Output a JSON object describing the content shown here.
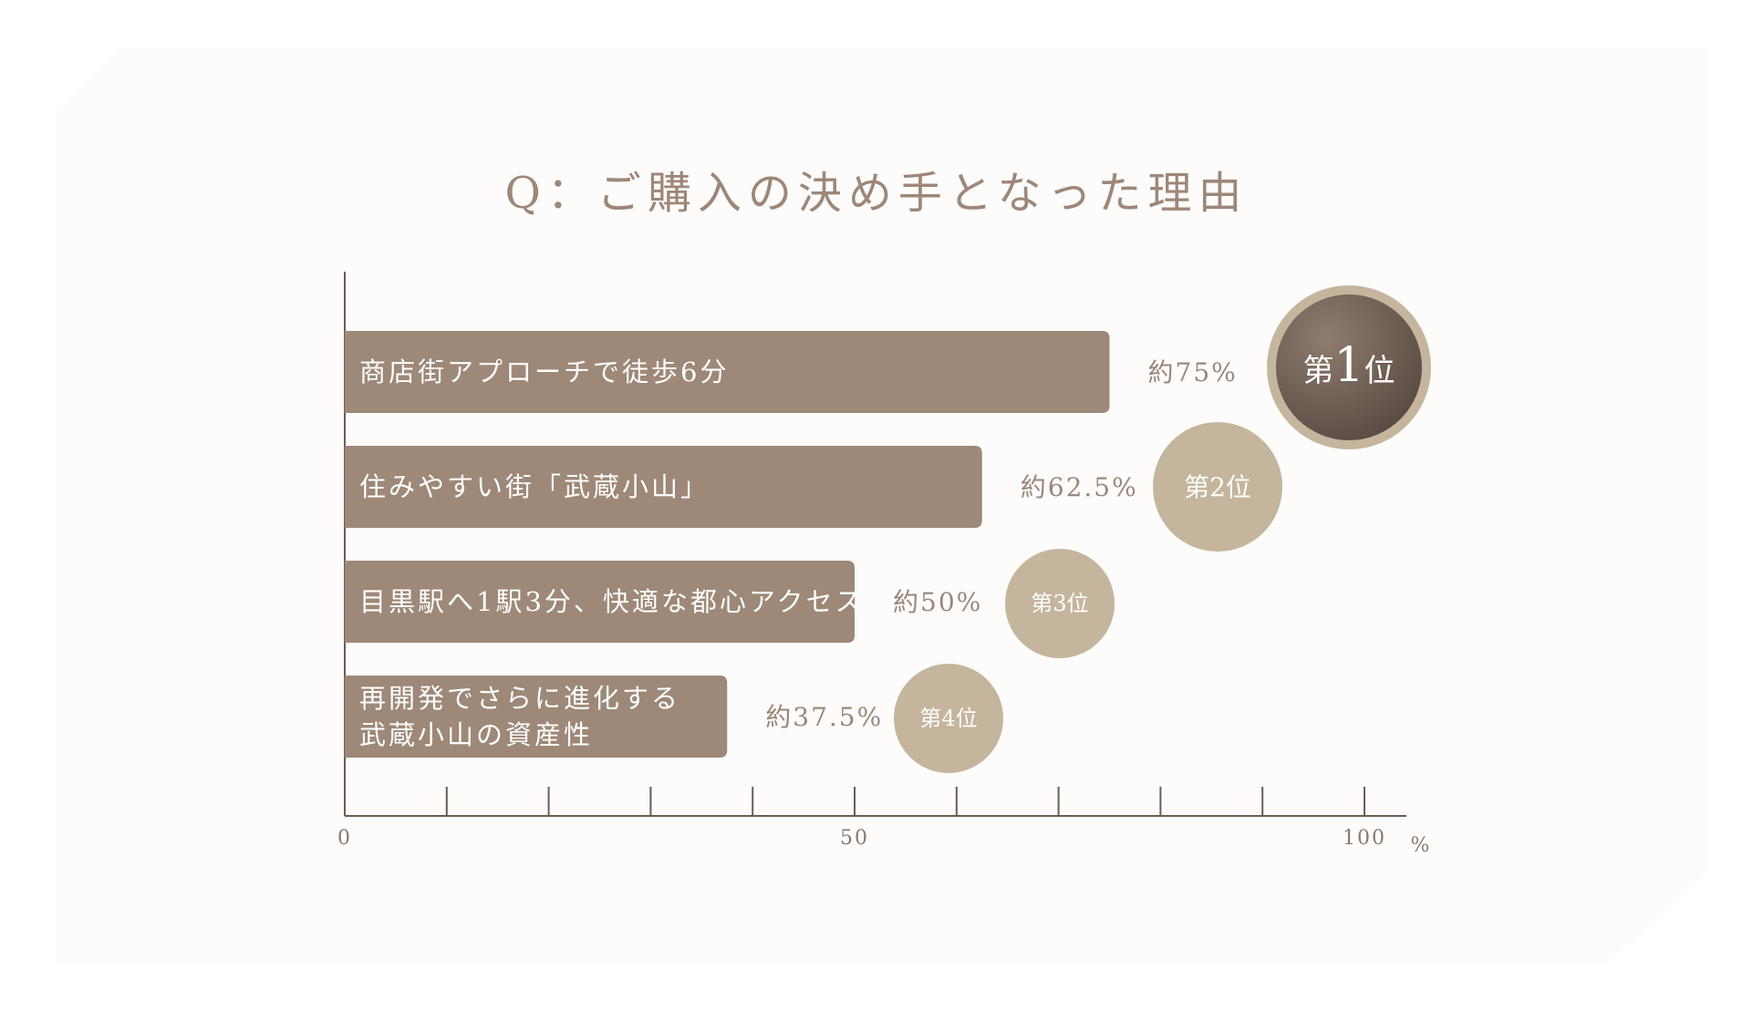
{
  "chart_data": {
    "type": "bar",
    "orientation": "horizontal",
    "title": "Q：ご購入の決め手となった理由",
    "categories": [
      [
        "商店街アプローチで徒歩6分"
      ],
      [
        "住みやすい街「武蔵小山」"
      ],
      [
        "目黒駅へ1駅3分、快適な都心アクセス"
      ],
      [
        "再開発でさらに進化する",
        "武蔵小山の資産性"
      ]
    ],
    "values": [
      75,
      62.5,
      50,
      37.5
    ],
    "value_labels": [
      "約75%",
      "約62.5%",
      "約50%",
      "約37.5%"
    ],
    "ranks": [
      {
        "prefix": "第",
        "number": "1",
        "suffix": "位"
      },
      {
        "prefix": "第",
        "number": "2",
        "suffix": "位"
      },
      {
        "prefix": "第",
        "number": "3",
        "suffix": "位"
      },
      {
        "prefix": "第",
        "number": "4",
        "suffix": "位"
      }
    ],
    "xlim": [
      0,
      100
    ],
    "x_ticks": [
      0,
      10,
      20,
      30,
      40,
      50,
      60,
      70,
      80,
      90,
      100
    ],
    "x_tick_labels": [
      {
        "value": 0,
        "label": "0"
      },
      {
        "value": 50,
        "label": "50"
      },
      {
        "value": 100,
        "label": "100"
      }
    ],
    "x_unit": "%",
    "colors": {
      "bar": "#9e8877",
      "axis": "#6b5d55",
      "title": "#9e8777",
      "value_text": "#9a877a",
      "rank_circle": "#c5b59c",
      "rank_first_outer": "#c5b59c",
      "rank_first_inner_top": "#8a7769",
      "rank_first_inner_bottom": "#5a4c44"
    }
  }
}
